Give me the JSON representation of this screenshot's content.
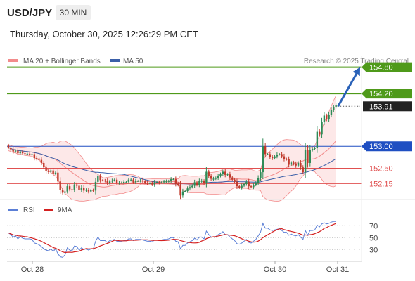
{
  "header": {
    "pair": "USD/JPY",
    "timeframe": "30 MIN",
    "timestamp": "Thursday, October 30, 2025 12:26:29 PM CET"
  },
  "colors": {
    "bull": "#2e8b57",
    "bear": "#c0392b",
    "ma20": "#f28b8b",
    "ma50": "#3a5fa8",
    "band_fill": "#fde2e2",
    "resistance": "#4f9a1a",
    "pivot": "#1f4fc2",
    "support": "#e05050",
    "rsi": "#5b7fd6",
    "rsi_ma": "#d42020",
    "arrow": "#2a62b8",
    "current": "#222222"
  },
  "chart_data": [
    {
      "type": "candlestick",
      "title": "",
      "source": "Research © 2025 Trading Central",
      "legend": [
        {
          "label": "MA 20 + Bollinger Bands",
          "color": "#f28b8b"
        },
        {
          "label": "MA 50",
          "color": "#3a5fa8"
        }
      ],
      "x_ticks": [
        "Oct 28",
        "Oct 29",
        "Oct 30",
        "Oct 31"
      ],
      "y_range": [
        151.82,
        155.05
      ],
      "current_price": 153.91,
      "levels": [
        {
          "value": 154.8,
          "label": "154.80",
          "kind": "resistance"
        },
        {
          "value": 154.2,
          "label": "154.20",
          "kind": "resistance"
        },
        {
          "value": 153.91,
          "label": "153.91",
          "kind": "current"
        },
        {
          "value": 153.0,
          "label": "153.00",
          "kind": "pivot"
        },
        {
          "value": 152.5,
          "label": "152.50",
          "kind": "support"
        },
        {
          "value": 152.15,
          "label": "152.15",
          "kind": "support"
        }
      ],
      "projection": {
        "from": 153.91,
        "to": 154.8
      },
      "close": [
        152.97,
        152.93,
        152.88,
        152.9,
        152.84,
        152.88,
        152.84,
        152.83,
        152.83,
        152.82,
        152.82,
        152.73,
        152.72,
        152.69,
        152.62,
        152.52,
        152.43,
        152.42,
        152.45,
        152.37,
        152.4,
        152.2,
        152.0,
        151.94,
        151.97,
        152.09,
        152.02,
        152.0,
        152.13,
        152.1,
        152.0,
        152.06,
        151.99,
        152.01,
        151.97,
        152.0,
        151.99,
        152.19,
        152.32,
        152.23,
        152.22,
        152.21,
        152.16,
        152.2,
        152.22,
        152.24,
        152.17,
        152.17,
        152.17,
        152.19,
        152.19,
        152.24,
        152.24,
        152.18,
        152.21,
        152.21,
        152.22,
        152.2,
        152.17,
        152.16,
        152.16,
        152.13,
        152.18,
        152.18,
        152.17,
        152.18,
        152.2,
        152.2,
        152.21,
        152.25,
        152.25,
        152.14,
        152.13,
        151.88,
        151.97,
        151.98,
        152.04,
        152.07,
        152.1,
        152.18,
        152.12,
        152.21,
        152.21,
        152.16,
        152.42,
        152.32,
        152.26,
        152.26,
        152.28,
        152.32,
        152.37,
        152.42,
        152.35,
        152.36,
        152.29,
        152.24,
        152.19,
        152.09,
        152.06,
        152.1,
        152.14,
        152.19,
        152.09,
        152.07,
        152.12,
        152.17,
        152.28,
        152.41,
        153.0,
        152.82,
        152.82,
        152.75,
        152.73,
        152.77,
        152.81,
        152.82,
        152.77,
        152.71,
        152.7,
        152.58,
        152.63,
        152.6,
        152.56,
        152.62,
        152.52,
        152.41,
        152.91,
        152.62,
        152.92,
        152.94,
        152.96,
        153.33,
        153.27,
        153.55,
        153.7,
        153.61,
        153.72,
        153.82,
        153.9,
        153.93
      ],
      "series": [
        {
          "name": "MA 20",
          "color": "#f28b8b"
        },
        {
          "name": "MA 50",
          "color": "#3a5fa8"
        }
      ]
    },
    {
      "type": "line",
      "title": "",
      "legend": [
        {
          "label": "RSI",
          "color": "#5b7fd6"
        },
        {
          "label": "9MA",
          "color": "#d42020"
        }
      ],
      "y_ticks": [
        70,
        50,
        30
      ],
      "y_range": [
        15,
        88
      ],
      "series": [
        {
          "name": "RSI",
          "color": "#5b7fd6",
          "values": [
            58,
            55,
            51,
            53,
            48,
            52,
            49,
            48,
            48,
            48,
            47,
            41,
            40,
            38,
            35,
            31,
            29,
            28,
            31,
            27,
            31,
            23,
            18,
            17,
            21,
            33,
            29,
            28,
            36,
            35,
            29,
            33,
            30,
            31,
            29,
            31,
            31,
            44,
            51,
            45,
            45,
            45,
            42,
            45,
            46,
            47,
            44,
            44,
            44,
            45,
            45,
            48,
            48,
            45,
            47,
            47,
            47,
            46,
            45,
            44,
            44,
            43,
            46,
            46,
            45,
            46,
            47,
            47,
            48,
            50,
            50,
            44,
            43,
            31,
            37,
            37,
            41,
            43,
            45,
            49,
            46,
            51,
            51,
            48,
            61,
            55,
            51,
            51,
            52,
            55,
            57,
            60,
            55,
            55,
            51,
            48,
            45,
            40,
            39,
            41,
            44,
            47,
            42,
            41,
            44,
            47,
            53,
            59,
            74,
            66,
            66,
            63,
            62,
            63,
            64,
            65,
            62,
            59,
            59,
            54,
            56,
            54,
            53,
            55,
            51,
            47,
            62,
            54,
            62,
            62,
            63,
            71,
            68,
            73,
            75,
            73,
            74,
            76,
            77,
            77
          ]
        }
      ]
    }
  ]
}
